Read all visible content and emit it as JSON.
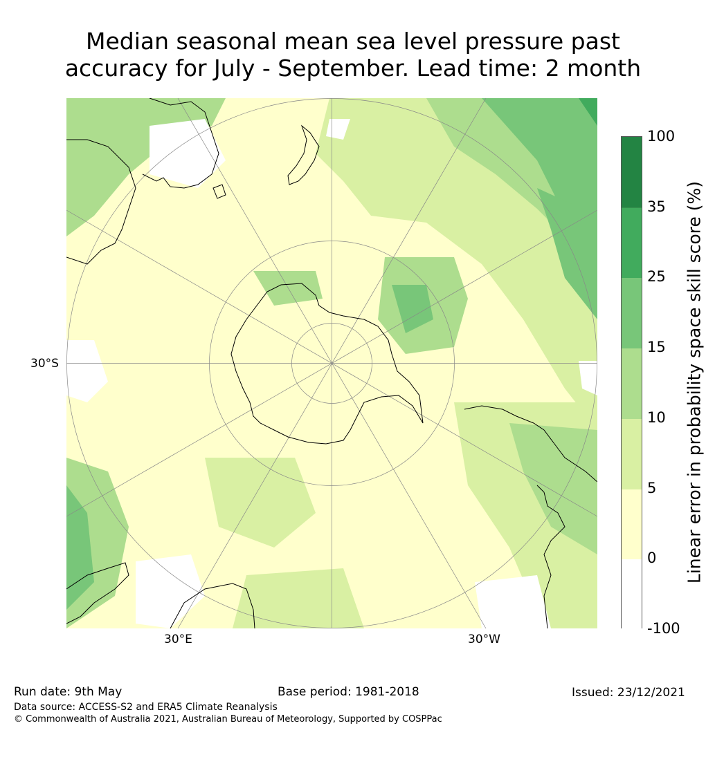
{
  "title_line1": "Median seasonal mean sea level pressure past",
  "title_line2": "accuracy for July - September. Lead time: 2 month",
  "map": {
    "projection": "south-polar-stereographic",
    "lat_label": "30°S",
    "lon_label_left": "30°E",
    "lon_label_right": "30°W"
  },
  "colorbar": {
    "label": "Linear error in probability space skill score (%)",
    "ticks": [
      "100",
      "35",
      "25",
      "15",
      "10",
      "5",
      "0",
      "-100"
    ],
    "colors": [
      "#ffffff",
      "#ffffcc",
      "#d9f0a3",
      "#addd8e",
      "#78c679",
      "#41ab5d",
      "#238443"
    ]
  },
  "footer": {
    "run_date": "Run date: 9th May",
    "base_period": "Base period: 1981-2018",
    "issued": "Issued: 23/12/2021",
    "data_source": "Data source: ACCESS-S2 and ERA5 Climate Reanalysis",
    "copyright": "© Commonwealth of Australia 2021, Australian Bureau of Meteorology, Supported by COSPPac"
  }
}
